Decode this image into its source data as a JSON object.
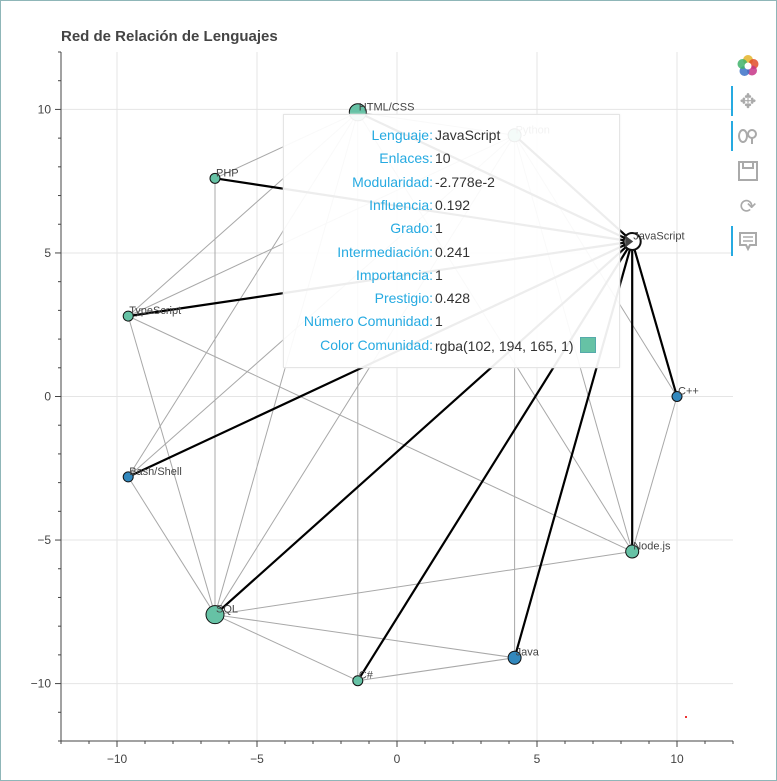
{
  "title": "Red de Relación de Lenguajes",
  "chart_data": {
    "type": "scatter",
    "title": "Red de Relación de Lenguajes",
    "xlim": [
      -12,
      12
    ],
    "ylim": [
      -12,
      12
    ],
    "x_ticks": [
      -10,
      -5,
      0,
      5,
      10
    ],
    "y_ticks": [
      10,
      5,
      0,
      -5,
      -10
    ],
    "grid": true,
    "nodes": [
      {
        "name": "HTML/CSS",
        "x": -1.4,
        "y": 9.9,
        "size": "large",
        "color": "#66c2a5"
      },
      {
        "name": "Python",
        "x": 4.2,
        "y": 9.1,
        "size": "medium",
        "color": "#66c2a5"
      },
      {
        "name": "PHP",
        "x": -6.5,
        "y": 7.6,
        "size": "small",
        "color": "#66c2a5"
      },
      {
        "name": "JavaScript",
        "x": 8.4,
        "y": 5.4,
        "size": "large",
        "color": "#66c2a5"
      },
      {
        "name": "TypeScript",
        "x": -9.6,
        "y": 2.8,
        "size": "small",
        "color": "#66c2a5"
      },
      {
        "name": "C++",
        "x": 10.0,
        "y": 0.0,
        "size": "small",
        "color": "#3288bd"
      },
      {
        "name": "Bash/Shell",
        "x": -9.6,
        "y": -2.8,
        "size": "small",
        "color": "#3288bd"
      },
      {
        "name": "Node.js",
        "x": 8.4,
        "y": -5.4,
        "size": "medium",
        "color": "#66c2a5"
      },
      {
        "name": "SQL",
        "x": -6.5,
        "y": -7.6,
        "size": "xlarge",
        "color": "#66c2a5"
      },
      {
        "name": "Java",
        "x": 4.2,
        "y": -9.1,
        "size": "medium",
        "color": "#3288bd"
      },
      {
        "name": "C#",
        "x": -1.4,
        "y": -9.9,
        "size": "small",
        "color": "#66c2a5"
      }
    ],
    "edges": [
      [
        "JavaScript",
        "HTML/CSS",
        "highlight"
      ],
      [
        "JavaScript",
        "Python",
        "highlight"
      ],
      [
        "JavaScript",
        "PHP",
        "highlight"
      ],
      [
        "JavaScript",
        "TypeScript",
        "highlight"
      ],
      [
        "JavaScript",
        "C++",
        "highlight"
      ],
      [
        "JavaScript",
        "Bash/Shell",
        "highlight"
      ],
      [
        "JavaScript",
        "Node.js",
        "highlight"
      ],
      [
        "JavaScript",
        "SQL",
        "highlight"
      ],
      [
        "JavaScript",
        "Java",
        "highlight"
      ],
      [
        "JavaScript",
        "C#",
        "highlight"
      ],
      [
        "HTML/CSS",
        "PHP",
        "normal"
      ],
      [
        "HTML/CSS",
        "TypeScript",
        "normal"
      ],
      [
        "HTML/CSS",
        "Bash/Shell",
        "normal"
      ],
      [
        "HTML/CSS",
        "SQL",
        "normal"
      ],
      [
        "HTML/CSS",
        "Python",
        "normal"
      ],
      [
        "HTML/CSS",
        "Node.js",
        "normal"
      ],
      [
        "Python",
        "Bash/Shell",
        "normal"
      ],
      [
        "Python",
        "SQL",
        "normal"
      ],
      [
        "Python",
        "C++",
        "normal"
      ],
      [
        "Python",
        "Java",
        "normal"
      ],
      [
        "Python",
        "Node.js",
        "normal"
      ],
      [
        "Python",
        "TypeScript",
        "normal"
      ],
      [
        "PHP",
        "SQL",
        "normal"
      ],
      [
        "TypeScript",
        "SQL",
        "normal"
      ],
      [
        "TypeScript",
        "Node.js",
        "normal"
      ],
      [
        "Bash/Shell",
        "SQL",
        "normal"
      ],
      [
        "SQL",
        "C#",
        "normal"
      ],
      [
        "SQL",
        "Java",
        "normal"
      ],
      [
        "SQL",
        "Node.js",
        "normal"
      ],
      [
        "Java",
        "C#",
        "normal"
      ],
      [
        "C#",
        "HTML/CSS",
        "normal"
      ],
      [
        "Node.js",
        "C++",
        "normal"
      ]
    ]
  },
  "tooltip": {
    "rows": [
      {
        "key": "Lenguaje:",
        "value": "JavaScript"
      },
      {
        "key": "Enlaces:",
        "value": "10"
      },
      {
        "key": "Modularidad:",
        "value": "-2.778e-2"
      },
      {
        "key": "Influencia:",
        "value": "0.192"
      },
      {
        "key": "Grado:",
        "value": "1"
      },
      {
        "key": "Intermediación:",
        "value": "0.241"
      },
      {
        "key": "Importancia:",
        "value": "1"
      },
      {
        "key": "Prestigio:",
        "value": "0.428"
      },
      {
        "key": "Número Comunidad:",
        "value": "1"
      },
      {
        "key": "Color Comunidad:",
        "value": "rgba(102, 194, 165, 1)"
      }
    ],
    "swatch_color": "#66c2a5"
  },
  "toolbar": [
    {
      "icon": "bokeh-logo-icon"
    },
    {
      "icon": "pan-icon",
      "active": true
    },
    {
      "icon": "wheel-zoom-icon",
      "active": true
    },
    {
      "icon": "save-icon"
    },
    {
      "icon": "reset-icon"
    },
    {
      "icon": "hover-icon",
      "active": true
    }
  ]
}
